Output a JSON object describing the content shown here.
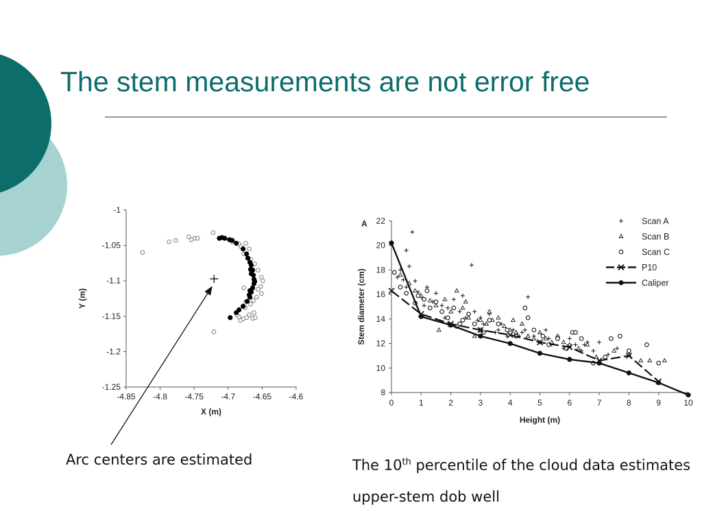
{
  "slide": {
    "title": "The stem measurements are not error free",
    "accent_color": "#0c6d6a",
    "accent_light_color": "#a6d3d2"
  },
  "captions": {
    "left": "Arc centers are estimated",
    "right_before": "The 10",
    "right_sup": "th",
    "right_after": " percentile of the cloud data estimates upper-stem dob well"
  },
  "chart_data": [
    {
      "type": "scatter",
      "xlabel": "X (m)",
      "ylabel": "Y (m)",
      "xlim": [
        -4.85,
        -4.6
      ],
      "ylim": [
        -1.25,
        -1.0
      ],
      "xticks": [
        -4.85,
        -4.8,
        -4.75,
        -4.7,
        -4.65,
        -4.6
      ],
      "yticks": [
        -1.0,
        -1.05,
        -1.1,
        -1.15,
        -1.2,
        -1.25
      ],
      "center": {
        "x": -4.7207,
        "y": -1.0973,
        "marker": "+"
      },
      "series": [
        {
          "marker": "open-circle",
          "color": "#888888",
          "points": [
            [
              -4.826,
              -1.06
            ],
            [
              -4.787,
              -1.045
            ],
            [
              -4.777,
              -1.043
            ],
            [
              -4.758,
              -1.038
            ],
            [
              -4.754,
              -1.042
            ],
            [
              -4.749,
              -1.04
            ],
            [
              -4.745,
              -1.04
            ],
            [
              -4.722,
              -1.032
            ],
            [
              -4.721,
              -1.172
            ],
            [
              -4.694,
              -1.045
            ],
            [
              -4.684,
              -1.048
            ],
            [
              -4.681,
              -1.052
            ],
            [
              -4.674,
              -1.047
            ],
            [
              -4.669,
              -1.055
            ],
            [
              -4.677,
              -1.062
            ],
            [
              -4.667,
              -1.07
            ],
            [
              -4.661,
              -1.076
            ],
            [
              -4.656,
              -1.085
            ],
            [
              -4.651,
              -1.095
            ],
            [
              -4.649,
              -1.1
            ],
            [
              -4.652,
              -1.108
            ],
            [
              -4.656,
              -1.112
            ],
            [
              -4.651,
              -1.118
            ],
            [
              -4.658,
              -1.123
            ],
            [
              -4.663,
              -1.128
            ],
            [
              -4.667,
              -1.133
            ],
            [
              -4.674,
              -1.13
            ],
            [
              -4.675,
              -1.138
            ],
            [
              -4.662,
              -1.145
            ],
            [
              -4.669,
              -1.148
            ],
            [
              -4.673,
              -1.152
            ],
            [
              -4.678,
              -1.154
            ],
            [
              -4.682,
              -1.156
            ],
            [
              -4.684,
              -1.151
            ],
            [
              -4.664,
              -1.153
            ],
            [
              -4.66,
              -1.152
            ],
            [
              -4.687,
              -1.148
            ],
            [
              -4.677,
              -1.11
            ]
          ]
        },
        {
          "marker": "filled-circle",
          "color": "#000000",
          "points": [
            [
              -4.713,
              -1.04
            ],
            [
              -4.709,
              -1.039
            ],
            [
              -4.705,
              -1.04
            ],
            [
              -4.698,
              -1.042
            ],
            [
              -4.694,
              -1.043
            ],
            [
              -4.688,
              -1.047
            ],
            [
              -4.678,
              -1.055
            ],
            [
              -4.673,
              -1.062
            ],
            [
              -4.671,
              -1.068
            ],
            [
              -4.668,
              -1.074
            ],
            [
              -4.666,
              -1.078
            ],
            [
              -4.664,
              -1.085
            ],
            [
              -4.663,
              -1.092
            ],
            [
              -4.662,
              -1.098
            ],
            [
              -4.662,
              -1.104
            ],
            [
              -4.664,
              -1.11
            ],
            [
              -4.666,
              -1.116
            ],
            [
              -4.668,
              -1.123
            ],
            [
              -4.672,
              -1.129
            ],
            [
              -4.678,
              -1.136
            ],
            [
              -4.684,
              -1.141
            ],
            [
              -4.688,
              -1.145
            ],
            [
              -4.697,
              -1.152
            ],
            [
              -4.667,
              -1.084
            ],
            [
              -4.668,
              -1.114
            ],
            [
              -4.661,
              -1.101
            ],
            [
              -4.669,
              -1.12
            ],
            [
              -4.666,
              -1.09
            ]
          ]
        }
      ]
    },
    {
      "type": "scatter",
      "panel_label": "A",
      "xlabel": "Height (m)",
      "ylabel": "Stem diameter (cm)",
      "xlim": [
        0,
        10
      ],
      "ylim": [
        8,
        22
      ],
      "xticks": [
        0,
        1,
        2,
        3,
        4,
        5,
        6,
        7,
        8,
        9,
        10
      ],
      "yticks": [
        8,
        10,
        12,
        14,
        16,
        18,
        20,
        22
      ],
      "legend": "top-right",
      "series": [
        {
          "name": "Scan A",
          "marker": "plus",
          "points": [
            [
              0.2,
              17.4
            ],
            [
              0.3,
              18.0
            ],
            [
              0.4,
              17.2
            ],
            [
              0.5,
              16.6
            ],
            [
              0.6,
              18.3
            ],
            [
              0.7,
              21.1
            ],
            [
              0.5,
              19.6
            ],
            [
              0.8,
              17.1
            ],
            [
              0.9,
              16.2
            ],
            [
              1.0,
              15.8
            ],
            [
              1.2,
              16.6
            ],
            [
              1.4,
              15.4
            ],
            [
              1.5,
              16.1
            ],
            [
              1.7,
              15.1
            ],
            [
              1.9,
              14.9
            ],
            [
              2.1,
              15.6
            ],
            [
              2.3,
              14.6
            ],
            [
              2.5,
              14.1
            ],
            [
              2.7,
              18.4
            ],
            [
              2.8,
              14.6
            ],
            [
              3.0,
              14.1
            ],
            [
              3.1,
              13.6
            ],
            [
              3.3,
              14.4
            ],
            [
              3.5,
              12.9
            ],
            [
              3.7,
              13.6
            ],
            [
              3.9,
              12.6
            ],
            [
              4.1,
              13.1
            ],
            [
              4.3,
              12.6
            ],
            [
              4.5,
              13.1
            ],
            [
              4.6,
              15.8
            ],
            [
              4.8,
              12.6
            ],
            [
              5.0,
              12.1
            ],
            [
              5.2,
              13.1
            ],
            [
              5.4,
              11.9
            ],
            [
              5.6,
              12.6
            ],
            [
              5.8,
              11.6
            ],
            [
              6.0,
              12.4
            ],
            [
              6.2,
              11.9
            ],
            [
              6.4,
              11.4
            ],
            [
              6.6,
              12.1
            ],
            [
              6.8,
              11.4
            ],
            [
              7.0,
              12.1
            ],
            [
              7.3,
              11.1
            ],
            [
              7.6,
              11.6
            ],
            [
              1.1,
              15.1
            ],
            [
              1.8,
              14.1
            ],
            [
              2.9,
              13.9
            ],
            [
              3.6,
              13.1
            ],
            [
              4.4,
              12.9
            ],
            [
              5.3,
              12.4
            ],
            [
              6.5,
              11.9
            ],
            [
              2.4,
              15.9
            ]
          ]
        },
        {
          "name": "Scan B",
          "marker": "triangle",
          "points": [
            [
              0.3,
              17.6
            ],
            [
              0.6,
              16.9
            ],
            [
              0.8,
              16.3
            ],
            [
              1.0,
              15.9
            ],
            [
              1.3,
              15.5
            ],
            [
              1.5,
              15.1
            ],
            [
              1.6,
              13.1
            ],
            [
              1.8,
              15.6
            ],
            [
              2.0,
              14.6
            ],
            [
              2.2,
              16.3
            ],
            [
              2.4,
              14.9
            ],
            [
              2.6,
              14.1
            ],
            [
              2.8,
              12.6
            ],
            [
              3.0,
              13.9
            ],
            [
              3.2,
              13.6
            ],
            [
              3.4,
              13.9
            ],
            [
              3.6,
              14.1
            ],
            [
              3.8,
              13.4
            ],
            [
              4.0,
              13.1
            ],
            [
              4.2,
              12.9
            ],
            [
              4.4,
              13.6
            ],
            [
              4.6,
              12.6
            ],
            [
              4.8,
              12.4
            ],
            [
              5.0,
              12.9
            ],
            [
              5.2,
              12.4
            ],
            [
              5.4,
              12.1
            ],
            [
              5.6,
              12.6
            ],
            [
              5.8,
              12.1
            ],
            [
              6.0,
              11.9
            ],
            [
              6.3,
              11.6
            ],
            [
              6.6,
              11.9
            ],
            [
              6.9,
              10.9
            ],
            [
              7.5,
              11.4
            ],
            [
              8.0,
              11.1
            ],
            [
              8.4,
              10.6
            ],
            [
              8.7,
              10.6
            ],
            [
              9.2,
              10.6
            ],
            [
              2.5,
              15.4
            ],
            [
              3.3,
              14.6
            ],
            [
              4.1,
              13.9
            ]
          ]
        },
        {
          "name": "Scan C",
          "marker": "open-circle",
          "points": [
            [
              0.1,
              17.8
            ],
            [
              0.3,
              16.6
            ],
            [
              0.5,
              16.1
            ],
            [
              0.8,
              15.3
            ],
            [
              0.9,
              15.9
            ],
            [
              1.1,
              15.6
            ],
            [
              1.3,
              14.9
            ],
            [
              1.5,
              15.4
            ],
            [
              1.7,
              14.6
            ],
            [
              1.9,
              14.1
            ],
            [
              2.1,
              14.9
            ],
            [
              2.2,
              13.4
            ],
            [
              2.4,
              13.9
            ],
            [
              2.6,
              14.4
            ],
            [
              2.8,
              13.6
            ],
            [
              3.0,
              13.1
            ],
            [
              3.3,
              13.9
            ],
            [
              3.6,
              13.6
            ],
            [
              3.9,
              13.1
            ],
            [
              4.2,
              12.6
            ],
            [
              4.5,
              14.9
            ],
            [
              4.6,
              14.1
            ],
            [
              4.8,
              13.1
            ],
            [
              5.1,
              12.6
            ],
            [
              5.3,
              11.9
            ],
            [
              5.6,
              12.4
            ],
            [
              5.9,
              11.6
            ],
            [
              6.1,
              12.9
            ],
            [
              6.2,
              12.9
            ],
            [
              6.4,
              12.4
            ],
            [
              6.8,
              10.4
            ],
            [
              7.2,
              10.9
            ],
            [
              7.4,
              12.4
            ],
            [
              7.7,
              12.6
            ],
            [
              8.0,
              11.4
            ],
            [
              8.6,
              11.9
            ],
            [
              9.0,
              10.4
            ],
            [
              1.2,
              16.3
            ],
            [
              2.3,
              13.6
            ],
            [
              3.1,
              12.9
            ]
          ]
        },
        {
          "name": "P10",
          "marker": "x",
          "line": "dashed",
          "points": [
            [
              0,
              16.3
            ],
            [
              1,
              14.4
            ],
            [
              2,
              13.6
            ],
            [
              3,
              13.1
            ],
            [
              4,
              12.7
            ],
            [
              5,
              12.1
            ],
            [
              6,
              11.7
            ],
            [
              7,
              10.6
            ],
            [
              8,
              11.0
            ],
            [
              9,
              8.9
            ]
          ]
        },
        {
          "name": "Caliper",
          "marker": "filled-circle",
          "line": "solid",
          "points": [
            [
              0,
              20.2
            ],
            [
              1,
              14.2
            ],
            [
              2,
              13.5
            ],
            [
              3,
              12.6
            ],
            [
              4,
              12.0
            ],
            [
              5,
              11.2
            ],
            [
              6,
              10.7
            ],
            [
              7,
              10.4
            ],
            [
              8,
              9.6
            ],
            [
              9,
              8.8
            ],
            [
              10,
              7.8
            ]
          ]
        }
      ]
    }
  ]
}
